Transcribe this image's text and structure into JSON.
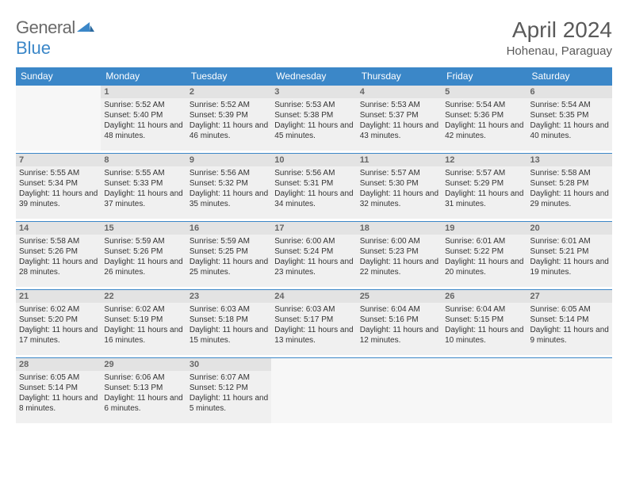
{
  "logo": {
    "text_a": "General",
    "text_b": "Blue",
    "color_a": "#6a6a6a",
    "color_b": "#3b87c8"
  },
  "title": "April 2024",
  "location": "Hohenau, Paraguay",
  "colors": {
    "header_bg": "#3b87c8",
    "header_fg": "#ffffff",
    "daynum_bg": "#e3e3e3",
    "daybody_bg": "#f0f0f0",
    "empty_bg": "#f7f7f7",
    "week_border": "#3b87c8"
  },
  "days_of_week": [
    "Sunday",
    "Monday",
    "Tuesday",
    "Wednesday",
    "Thursday",
    "Friday",
    "Saturday"
  ],
  "weeks": [
    [
      null,
      {
        "n": "1",
        "sr": "5:52 AM",
        "ss": "5:40 PM",
        "dl": "11 hours and 48 minutes."
      },
      {
        "n": "2",
        "sr": "5:52 AM",
        "ss": "5:39 PM",
        "dl": "11 hours and 46 minutes."
      },
      {
        "n": "3",
        "sr": "5:53 AM",
        "ss": "5:38 PM",
        "dl": "11 hours and 45 minutes."
      },
      {
        "n": "4",
        "sr": "5:53 AM",
        "ss": "5:37 PM",
        "dl": "11 hours and 43 minutes."
      },
      {
        "n": "5",
        "sr": "5:54 AM",
        "ss": "5:36 PM",
        "dl": "11 hours and 42 minutes."
      },
      {
        "n": "6",
        "sr": "5:54 AM",
        "ss": "5:35 PM",
        "dl": "11 hours and 40 minutes."
      }
    ],
    [
      {
        "n": "7",
        "sr": "5:55 AM",
        "ss": "5:34 PM",
        "dl": "11 hours and 39 minutes."
      },
      {
        "n": "8",
        "sr": "5:55 AM",
        "ss": "5:33 PM",
        "dl": "11 hours and 37 minutes."
      },
      {
        "n": "9",
        "sr": "5:56 AM",
        "ss": "5:32 PM",
        "dl": "11 hours and 35 minutes."
      },
      {
        "n": "10",
        "sr": "5:56 AM",
        "ss": "5:31 PM",
        "dl": "11 hours and 34 minutes."
      },
      {
        "n": "11",
        "sr": "5:57 AM",
        "ss": "5:30 PM",
        "dl": "11 hours and 32 minutes."
      },
      {
        "n": "12",
        "sr": "5:57 AM",
        "ss": "5:29 PM",
        "dl": "11 hours and 31 minutes."
      },
      {
        "n": "13",
        "sr": "5:58 AM",
        "ss": "5:28 PM",
        "dl": "11 hours and 29 minutes."
      }
    ],
    [
      {
        "n": "14",
        "sr": "5:58 AM",
        "ss": "5:26 PM",
        "dl": "11 hours and 28 minutes."
      },
      {
        "n": "15",
        "sr": "5:59 AM",
        "ss": "5:26 PM",
        "dl": "11 hours and 26 minutes."
      },
      {
        "n": "16",
        "sr": "5:59 AM",
        "ss": "5:25 PM",
        "dl": "11 hours and 25 minutes."
      },
      {
        "n": "17",
        "sr": "6:00 AM",
        "ss": "5:24 PM",
        "dl": "11 hours and 23 minutes."
      },
      {
        "n": "18",
        "sr": "6:00 AM",
        "ss": "5:23 PM",
        "dl": "11 hours and 22 minutes."
      },
      {
        "n": "19",
        "sr": "6:01 AM",
        "ss": "5:22 PM",
        "dl": "11 hours and 20 minutes."
      },
      {
        "n": "20",
        "sr": "6:01 AM",
        "ss": "5:21 PM",
        "dl": "11 hours and 19 minutes."
      }
    ],
    [
      {
        "n": "21",
        "sr": "6:02 AM",
        "ss": "5:20 PM",
        "dl": "11 hours and 17 minutes."
      },
      {
        "n": "22",
        "sr": "6:02 AM",
        "ss": "5:19 PM",
        "dl": "11 hours and 16 minutes."
      },
      {
        "n": "23",
        "sr": "6:03 AM",
        "ss": "5:18 PM",
        "dl": "11 hours and 15 minutes."
      },
      {
        "n": "24",
        "sr": "6:03 AM",
        "ss": "5:17 PM",
        "dl": "11 hours and 13 minutes."
      },
      {
        "n": "25",
        "sr": "6:04 AM",
        "ss": "5:16 PM",
        "dl": "11 hours and 12 minutes."
      },
      {
        "n": "26",
        "sr": "6:04 AM",
        "ss": "5:15 PM",
        "dl": "11 hours and 10 minutes."
      },
      {
        "n": "27",
        "sr": "6:05 AM",
        "ss": "5:14 PM",
        "dl": "11 hours and 9 minutes."
      }
    ],
    [
      {
        "n": "28",
        "sr": "6:05 AM",
        "ss": "5:14 PM",
        "dl": "11 hours and 8 minutes."
      },
      {
        "n": "29",
        "sr": "6:06 AM",
        "ss": "5:13 PM",
        "dl": "11 hours and 6 minutes."
      },
      {
        "n": "30",
        "sr": "6:07 AM",
        "ss": "5:12 PM",
        "dl": "11 hours and 5 minutes."
      },
      null,
      null,
      null,
      null
    ]
  ],
  "labels": {
    "sunrise": "Sunrise: ",
    "sunset": "Sunset: ",
    "daylight": "Daylight: "
  }
}
